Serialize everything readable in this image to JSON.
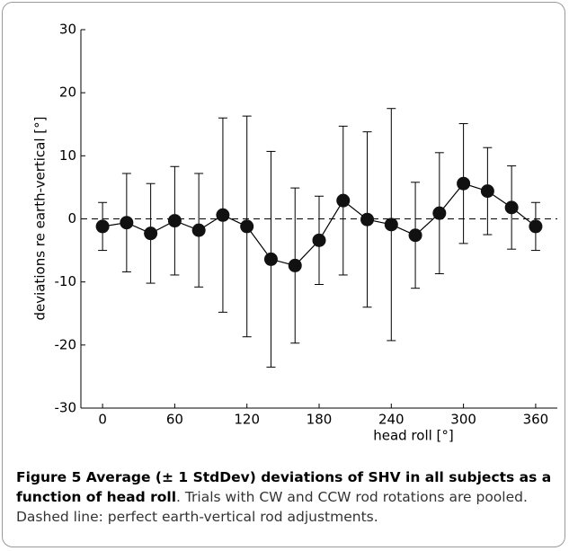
{
  "chart_data": {
    "type": "errorbar-line",
    "x": [
      0,
      20,
      40,
      60,
      80,
      100,
      120,
      140,
      160,
      180,
      200,
      220,
      240,
      260,
      280,
      300,
      320,
      340,
      360
    ],
    "series": [
      {
        "color": "#000000",
        "values": [
          -1.2,
          -0.6,
          -2.3,
          -0.3,
          -1.8,
          0.6,
          -1.2,
          -6.4,
          -7.4,
          -3.4,
          2.9,
          -0.1,
          -0.9,
          -2.6,
          0.9,
          5.6,
          4.4,
          1.8,
          -1.2
        ],
        "errors": [
          3.8,
          7.8,
          7.9,
          8.6,
          9.0,
          15.4,
          17.5,
          17.1,
          12.3,
          7.0,
          11.8,
          13.9,
          18.4,
          8.4,
          9.6,
          9.5,
          6.9,
          6.6,
          3.8
        ]
      }
    ],
    "xlabel": "head roll [°]",
    "ylabel": "deviations re earth-vertical [°]",
    "xlim": [
      -18,
      378
    ],
    "ylim": [
      -30,
      30
    ],
    "xticks": [
      0,
      60,
      120,
      180,
      240,
      300,
      360
    ],
    "yticks": [
      -30,
      -20,
      -10,
      0,
      10,
      20,
      30
    ],
    "hline": 0
  },
  "caption": {
    "title": "Figure 5 Average (± 1 StdDev) deviations of SHV in all subjects as a function of head roll",
    "text": ". Trials with CW and CCW rod rotations are pooled. Dashed line: perfect earth-vertical rod adjustments."
  }
}
